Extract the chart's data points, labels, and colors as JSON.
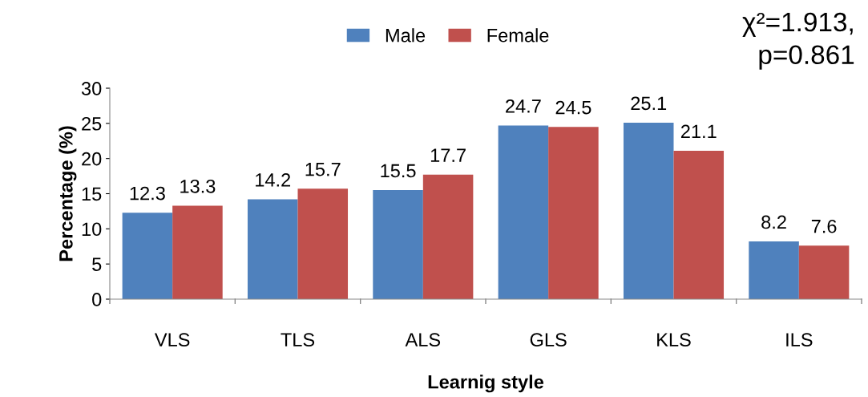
{
  "chart_data": {
    "type": "bar",
    "xlabel": "Learnig style",
    "ylabel": "Percentage (%)",
    "categories": [
      "VLS",
      "TLS",
      "ALS",
      "GLS",
      "KLS",
      "ILS"
    ],
    "series": [
      {
        "name": "Male",
        "color": "#4f81bd",
        "values": [
          12.3,
          14.2,
          15.5,
          24.7,
          25.1,
          8.2
        ]
      },
      {
        "name": "Female",
        "color": "#c0504d",
        "values": [
          13.3,
          15.7,
          17.7,
          24.5,
          21.1,
          7.6
        ]
      }
    ],
    "ylim": [
      0,
      30
    ],
    "yticks": [
      0,
      5,
      10,
      15,
      20,
      25,
      30
    ],
    "grid": false,
    "legend": "top",
    "data_labels": true,
    "annotations": [
      "χ²=1.913,\np=0.861"
    ]
  }
}
